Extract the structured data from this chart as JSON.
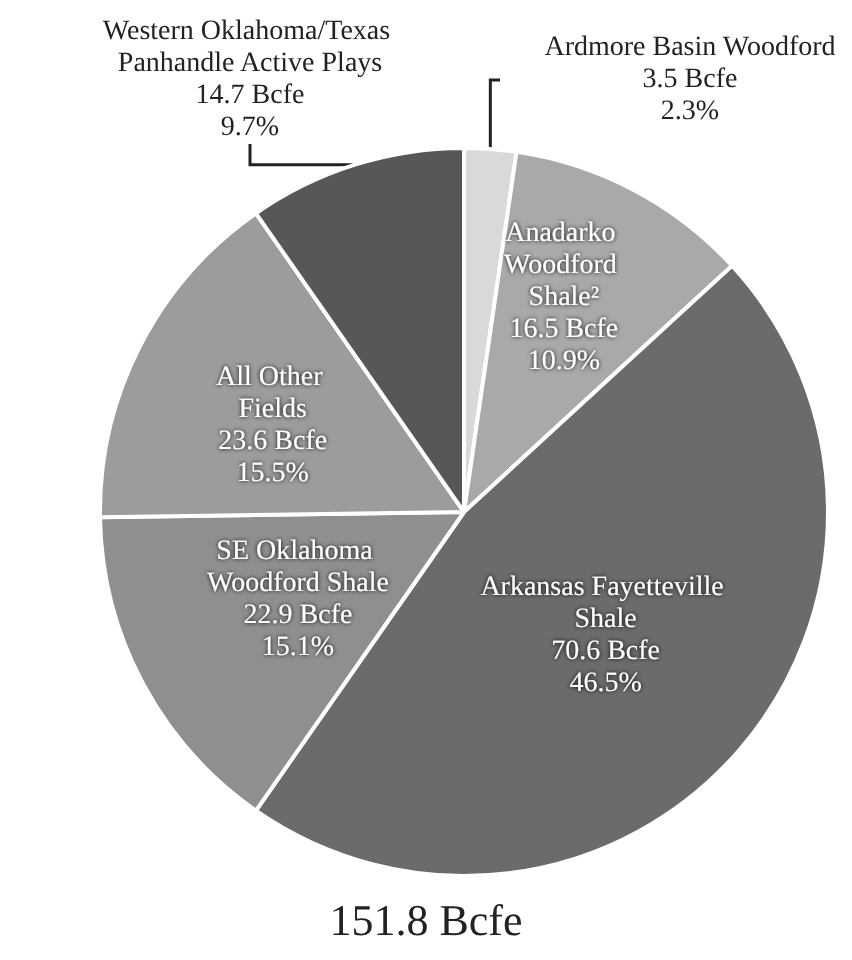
{
  "chart_data": {
    "type": "pie",
    "title": "151.8 Bcfe",
    "categories": [
      "Ardmore Basin Woodford",
      "Anadarko Woodford Shale²",
      "Arkansas Fayetteville Shale",
      "SE Oklahoma Woodford Shale",
      "All Other Fields",
      "Western Oklahoma/Texas Panhandle Active Plays"
    ],
    "values": [
      3.5,
      16.5,
      70.6,
      22.9,
      23.6,
      14.7
    ],
    "value_labels": [
      "3.5 Bcfe\n2.3%",
      "16.5 Bcfe\n10.9%",
      "70.6 Bcfe\n46.5%",
      "22.9 Bcfe\n15.1%",
      "23.6 Bcfe\n15.5%",
      "14.7 Bcfe\n9.7%"
    ],
    "colors": [
      "#d9d9d9",
      "#a9a9a9",
      "#6b6b6b",
      "#8f8f8f",
      "#9c9c9c",
      "#575757"
    ]
  }
}
